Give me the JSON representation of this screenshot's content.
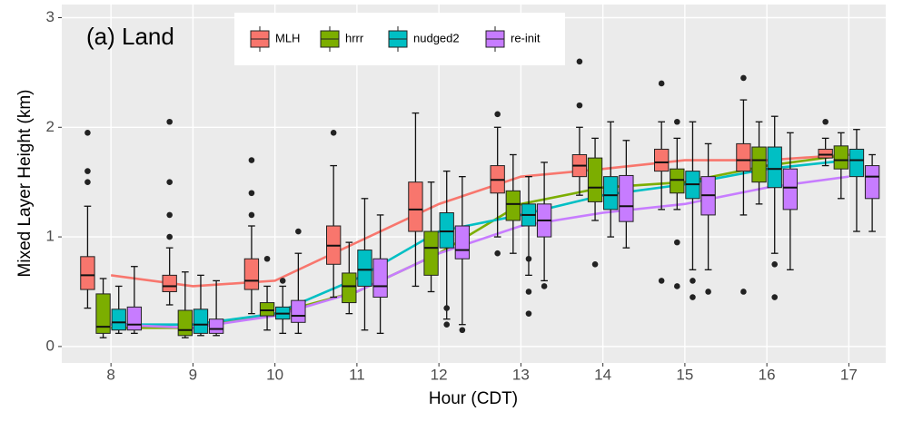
{
  "chart_data": {
    "type": "boxplot",
    "annotation": "(a) Land",
    "x_label": "Hour (CDT)",
    "y_label": "Mixed Layer Height (km)",
    "x": [
      8,
      9,
      10,
      11,
      12,
      13,
      14,
      15,
      16,
      17
    ],
    "xlim": [
      7.4,
      17.45
    ],
    "xticks": [
      8,
      9,
      10,
      11,
      12,
      13,
      14,
      15,
      16,
      17
    ],
    "ylim": [
      -0.15,
      3.12
    ],
    "yticks": [
      0,
      1,
      2,
      3
    ],
    "grid": true,
    "legend": "top",
    "series": [
      {
        "name": "MLH",
        "color": "#f8766d",
        "line": [
          0.65,
          0.55,
          0.6,
          0.95,
          1.3,
          1.55,
          1.62,
          1.7,
          1.7,
          1.75
        ],
        "boxes": [
          {
            "low": 0.35,
            "q1": 0.52,
            "median": 0.65,
            "q3": 0.82,
            "high": 1.28,
            "outliers": [
              1.5,
              1.6,
              1.95
            ]
          },
          {
            "low": 0.38,
            "q1": 0.5,
            "median": 0.55,
            "q3": 0.65,
            "high": 0.9,
            "outliers": [
              1.0,
              1.2,
              1.5,
              2.05
            ]
          },
          {
            "low": 0.3,
            "q1": 0.52,
            "median": 0.6,
            "q3": 0.8,
            "high": 1.1,
            "outliers": [
              1.2,
              1.4,
              1.7
            ]
          },
          {
            "low": 0.45,
            "q1": 0.75,
            "median": 0.92,
            "q3": 1.1,
            "high": 1.65,
            "outliers": [
              1.95
            ]
          },
          {
            "low": 0.55,
            "q1": 1.05,
            "median": 1.25,
            "q3": 1.5,
            "high": 2.13,
            "outliers": []
          },
          {
            "low": 1.0,
            "q1": 1.4,
            "median": 1.52,
            "q3": 1.65,
            "high": 2.0,
            "outliers": [
              0.85,
              2.12
            ]
          },
          {
            "low": 1.38,
            "q1": 1.55,
            "median": 1.65,
            "q3": 1.75,
            "high": 2.0,
            "outliers": [
              2.2,
              2.6
            ]
          },
          {
            "low": 1.25,
            "q1": 1.6,
            "median": 1.68,
            "q3": 1.8,
            "high": 2.05,
            "outliers": [
              0.6,
              2.4
            ]
          },
          {
            "low": 1.2,
            "q1": 1.6,
            "median": 1.7,
            "q3": 1.85,
            "high": 2.25,
            "outliers": [
              0.5,
              2.45
            ]
          },
          {
            "low": 1.65,
            "q1": 1.72,
            "median": 1.75,
            "q3": 1.8,
            "high": 1.9,
            "outliers": [
              2.05
            ]
          }
        ]
      },
      {
        "name": "hrrr",
        "color": "#7cae00",
        "line": [
          0.17,
          0.17,
          0.3,
          0.5,
          0.85,
          1.3,
          1.45,
          1.5,
          1.65,
          1.75
        ],
        "boxes": [
          {
            "low": 0.08,
            "q1": 0.12,
            "median": 0.18,
            "q3": 0.48,
            "high": 0.62,
            "outliers": []
          },
          {
            "low": 0.08,
            "q1": 0.1,
            "median": 0.15,
            "q3": 0.33,
            "high": 0.68,
            "outliers": []
          },
          {
            "low": 0.15,
            "q1": 0.28,
            "median": 0.33,
            "q3": 0.4,
            "high": 0.55,
            "outliers": [
              0.8
            ]
          },
          {
            "low": 0.3,
            "q1": 0.4,
            "median": 0.55,
            "q3": 0.67,
            "high": 0.95,
            "outliers": []
          },
          {
            "low": 0.5,
            "q1": 0.65,
            "median": 0.9,
            "q3": 1.05,
            "high": 1.5,
            "outliers": []
          },
          {
            "low": 0.85,
            "q1": 1.15,
            "median": 1.3,
            "q3": 1.42,
            "high": 1.75,
            "outliers": []
          },
          {
            "low": 1.15,
            "q1": 1.32,
            "median": 1.45,
            "q3": 1.72,
            "high": 1.9,
            "outliers": [
              0.75
            ]
          },
          {
            "low": 1.25,
            "q1": 1.4,
            "median": 1.52,
            "q3": 1.62,
            "high": 1.9,
            "outliers": [
              0.55,
              0.95,
              2.05
            ]
          },
          {
            "low": 1.3,
            "q1": 1.5,
            "median": 1.7,
            "q3": 1.82,
            "high": 2.05,
            "outliers": []
          },
          {
            "low": 1.35,
            "q1": 1.62,
            "median": 1.7,
            "q3": 1.83,
            "high": 1.95,
            "outliers": []
          }
        ]
      },
      {
        "name": "nudged2",
        "color": "#00bfc4",
        "line": [
          0.2,
          0.2,
          0.3,
          0.62,
          1.05,
          1.2,
          1.38,
          1.48,
          1.62,
          1.7
        ],
        "boxes": [
          {
            "low": 0.12,
            "q1": 0.15,
            "median": 0.22,
            "q3": 0.34,
            "high": 0.55,
            "outliers": []
          },
          {
            "low": 0.1,
            "q1": 0.12,
            "median": 0.2,
            "q3": 0.34,
            "high": 0.65,
            "outliers": []
          },
          {
            "low": 0.12,
            "q1": 0.25,
            "median": 0.3,
            "q3": 0.36,
            "high": 0.55,
            "outliers": [
              0.6
            ]
          },
          {
            "low": 0.15,
            "q1": 0.55,
            "median": 0.7,
            "q3": 0.88,
            "high": 1.35,
            "outliers": []
          },
          {
            "low": 0.25,
            "q1": 0.9,
            "median": 1.05,
            "q3": 1.22,
            "high": 1.6,
            "outliers": [
              0.2,
              0.35
            ]
          },
          {
            "low": 0.65,
            "q1": 1.1,
            "median": 1.2,
            "q3": 1.3,
            "high": 1.55,
            "outliers": [
              0.3,
              0.5,
              0.8
            ]
          },
          {
            "low": 1.0,
            "q1": 1.25,
            "median": 1.38,
            "q3": 1.55,
            "high": 2.05,
            "outliers": []
          },
          {
            "low": 0.7,
            "q1": 1.35,
            "median": 1.48,
            "q3": 1.6,
            "high": 2.05,
            "outliers": [
              0.45,
              0.6
            ]
          },
          {
            "low": 0.85,
            "q1": 1.45,
            "median": 1.62,
            "q3": 1.82,
            "high": 2.1,
            "outliers": [
              0.45,
              0.75
            ]
          },
          {
            "low": 1.05,
            "q1": 1.55,
            "median": 1.7,
            "q3": 1.8,
            "high": 1.98,
            "outliers": []
          }
        ]
      },
      {
        "name": "re-init",
        "color": "#c77cff",
        "line": [
          0.2,
          0.17,
          0.28,
          0.5,
          0.85,
          1.1,
          1.22,
          1.3,
          1.45,
          1.55
        ],
        "boxes": [
          {
            "low": 0.12,
            "q1": 0.15,
            "median": 0.2,
            "q3": 0.36,
            "high": 0.73,
            "outliers": []
          },
          {
            "low": 0.1,
            "q1": 0.12,
            "median": 0.16,
            "q3": 0.25,
            "high": 0.6,
            "outliers": []
          },
          {
            "low": 0.12,
            "q1": 0.22,
            "median": 0.28,
            "q3": 0.42,
            "high": 0.85,
            "outliers": [
              1.05
            ]
          },
          {
            "low": 0.12,
            "q1": 0.45,
            "median": 0.55,
            "q3": 0.8,
            "high": 1.2,
            "outliers": []
          },
          {
            "low": 0.2,
            "q1": 0.8,
            "median": 0.88,
            "q3": 1.1,
            "high": 1.55,
            "outliers": [
              0.15
            ]
          },
          {
            "low": 0.6,
            "q1": 1.0,
            "median": 1.15,
            "q3": 1.3,
            "high": 1.68,
            "outliers": [
              0.55
            ]
          },
          {
            "low": 0.9,
            "q1": 1.14,
            "median": 1.28,
            "q3": 1.56,
            "high": 1.88,
            "outliers": []
          },
          {
            "low": 0.7,
            "q1": 1.2,
            "median": 1.38,
            "q3": 1.55,
            "high": 1.85,
            "outliers": [
              0.5
            ]
          },
          {
            "low": 0.7,
            "q1": 1.25,
            "median": 1.45,
            "q3": 1.62,
            "high": 1.95,
            "outliers": []
          },
          {
            "low": 1.05,
            "q1": 1.35,
            "median": 1.55,
            "q3": 1.65,
            "high": 1.75,
            "outliers": []
          }
        ]
      }
    ]
  }
}
